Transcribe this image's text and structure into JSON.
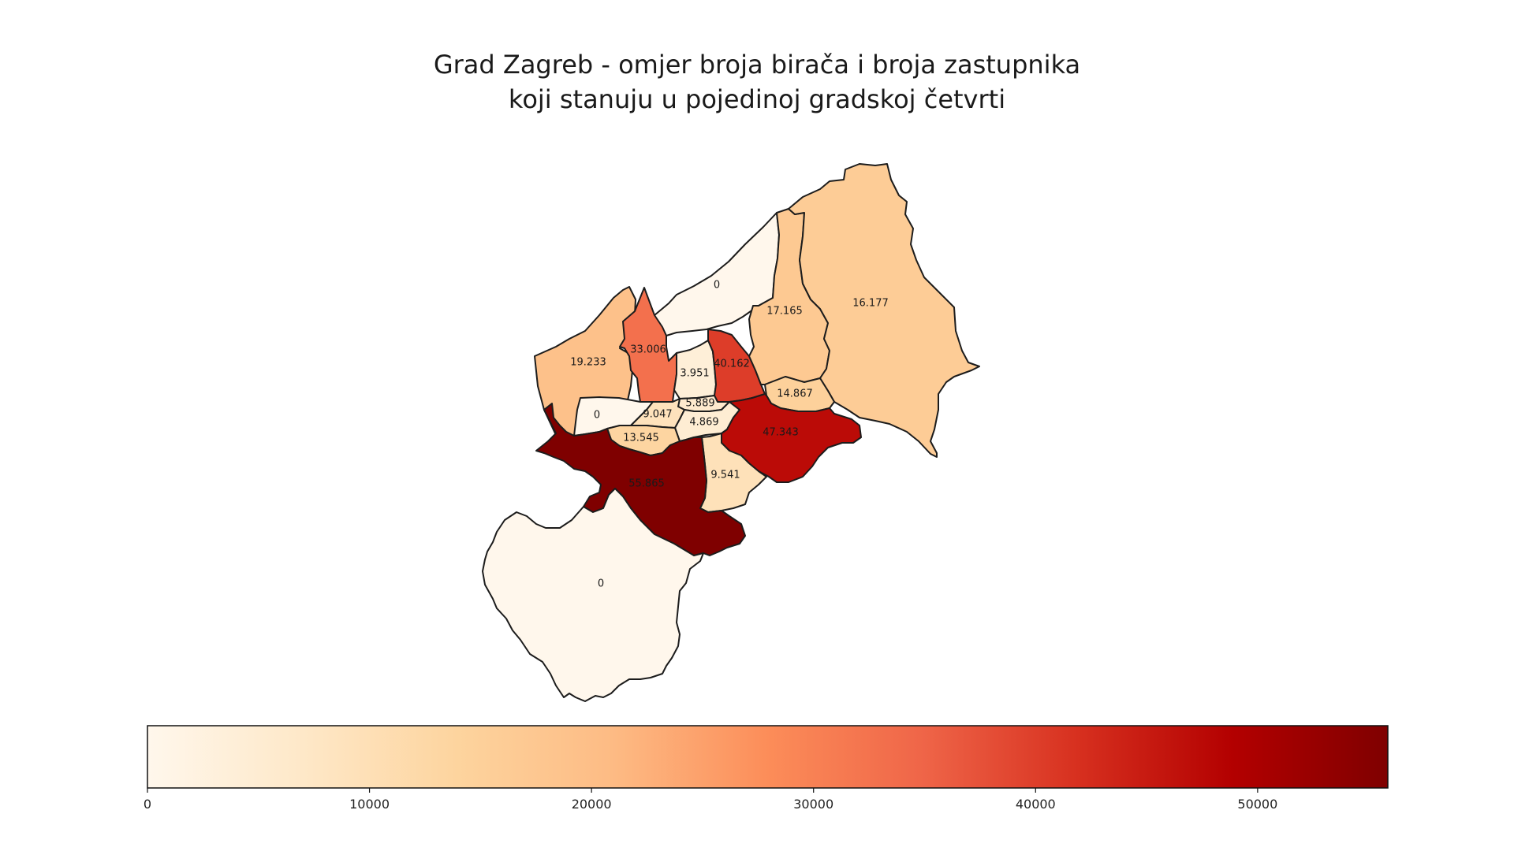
{
  "title": {
    "line1": "Grad Zagreb - omjer broja birača i broja zastupnika",
    "line2": "koji stanuju u pojedinoj gradskoj četvrti"
  },
  "colormap": {
    "name": "OrRd",
    "min": 0,
    "max": 55865,
    "stops": [
      "#fff7ec",
      "#fee8c8",
      "#fdd49e",
      "#fdbb84",
      "#fc8d59",
      "#ef6548",
      "#d7301f",
      "#b30000",
      "#7f0000"
    ]
  },
  "colorbar": {
    "ticks": [
      "0",
      "10000",
      "20000",
      "30000",
      "40000",
      "50000"
    ],
    "tick_values": [
      0,
      10000,
      20000,
      30000,
      40000,
      50000
    ]
  },
  "districts": [
    {
      "id": "north-west",
      "label": "0",
      "value": 0
    },
    {
      "id": "west-hills",
      "label": "19.233",
      "value": 19233
    },
    {
      "id": "west-strip",
      "label": "33.006",
      "value": 33006
    },
    {
      "id": "center-north",
      "label": "3.951",
      "value": 3951
    },
    {
      "id": "north-center-red",
      "label": "40.162",
      "value": 40162
    },
    {
      "id": "north-east-1",
      "label": "17.165",
      "value": 17165
    },
    {
      "id": "north-east-2",
      "label": "16.177",
      "value": 16177
    },
    {
      "id": "east-small",
      "label": "14.867",
      "value": 14867
    },
    {
      "id": "center-small",
      "label": "5.889",
      "value": 5889
    },
    {
      "id": "west-mid",
      "label": "0",
      "value": 0
    },
    {
      "id": "center-west",
      "label": "9.047",
      "value": 9047
    },
    {
      "id": "center-south",
      "label": "4.869",
      "value": 4869
    },
    {
      "id": "east-red",
      "label": "47.343",
      "value": 47343
    },
    {
      "id": "south-west-small",
      "label": "13.545",
      "value": 13545
    },
    {
      "id": "south-center",
      "label": "9.541",
      "value": 9541
    },
    {
      "id": "south-west-dark",
      "label": "55.865",
      "value": 55865
    },
    {
      "id": "south",
      "label": "0",
      "value": 0
    }
  ]
}
